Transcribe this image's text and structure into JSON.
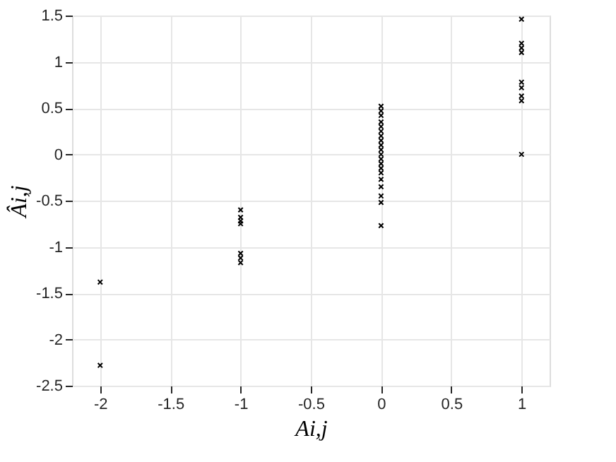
{
  "chart_data": {
    "type": "scatter",
    "xlabel": "Ai,j",
    "ylabel": "Âi,j",
    "xlim": [
      -2.2,
      1.2
    ],
    "xticks": [
      -2,
      -1.5,
      -1,
      -0.5,
      0,
      0.5,
      1
    ],
    "ylim": [
      -2.5,
      1.5
    ],
    "yticks": [
      -2.5,
      -2,
      -1.5,
      -1,
      -0.5,
      0,
      0.5,
      1,
      1.5
    ],
    "grid": true,
    "marker": "cross",
    "series": [
      {
        "color": "#000000",
        "x": [
          -2,
          -2,
          -1,
          -1,
          -1,
          -1,
          -1,
          -1,
          -1,
          0,
          0,
          0,
          0,
          0,
          0,
          0,
          0,
          0,
          0,
          0,
          0,
          0,
          0,
          0,
          0,
          0,
          0,
          0,
          0,
          1,
          1,
          1,
          1,
          1,
          1,
          1,
          1,
          1
        ],
        "values": [
          -1.38,
          -2.28,
          -0.6,
          -0.68,
          -0.72,
          -0.75,
          -1.07,
          -1.12,
          -1.17,
          0.52,
          0.47,
          0.42,
          0.35,
          0.3,
          0.25,
          0.2,
          0.15,
          0.1,
          0.05,
          0,
          -0.05,
          -0.1,
          -0.15,
          -0.2,
          -0.27,
          -0.35,
          -0.45,
          -0.52,
          -0.77,
          1.46,
          1.2,
          1.15,
          1.1,
          0.78,
          0.72,
          0.63,
          0.58,
          0
        ]
      }
    ]
  }
}
